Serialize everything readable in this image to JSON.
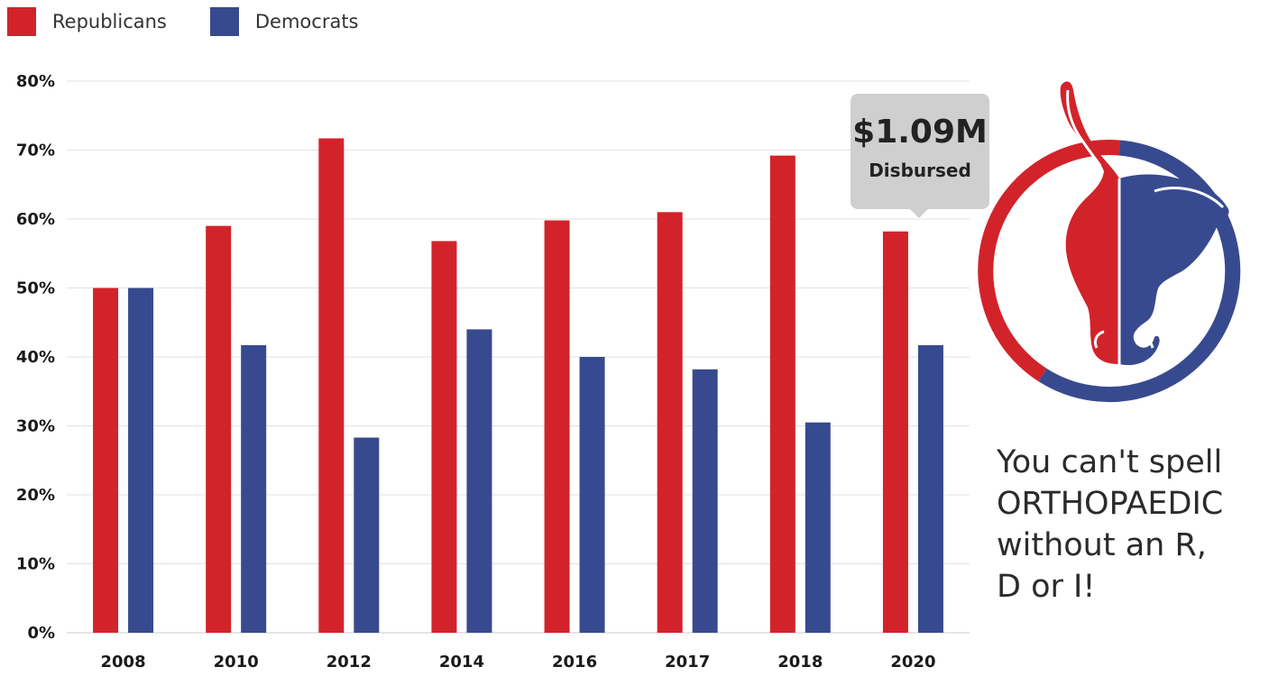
{
  "legend": {
    "items": [
      {
        "label": "Republicans",
        "color": "#d2232a"
      },
      {
        "label": "Democrats",
        "color": "#384a8f"
      }
    ]
  },
  "tooltip": {
    "amount": "$1.09M",
    "label": "Disbursed"
  },
  "slogan": {
    "line1": "You can't spell",
    "line2": "ORTHOPAEDIC",
    "line3": "without an R,",
    "line4": "D or I!"
  },
  "logo": {
    "icon": "elephant-donkey-hybrid-icon",
    "left_color": "#d2232a",
    "right_color": "#384a8f"
  },
  "chart_data": {
    "type": "bar",
    "categories": [
      "2008",
      "2010",
      "2012",
      "2014",
      "2016",
      "2017",
      "2018",
      "2020"
    ],
    "series": [
      {
        "name": "Republicans",
        "color": "#d2232a",
        "values": [
          50,
          59,
          71.7,
          56.8,
          59.8,
          61,
          69.2,
          58.2
        ]
      },
      {
        "name": "Democrats",
        "color": "#384a8f",
        "values": [
          50,
          41.7,
          28.3,
          44,
          40,
          38.2,
          30.5,
          41.7
        ]
      }
    ],
    "yticks": [
      "0%",
      "10%",
      "20%",
      "30%",
      "40%",
      "50%",
      "60%",
      "70%",
      "80%"
    ],
    "ylim": [
      0,
      80
    ],
    "grid": true,
    "legend_position": "top-left",
    "title": "",
    "xlabel": "",
    "ylabel": ""
  }
}
